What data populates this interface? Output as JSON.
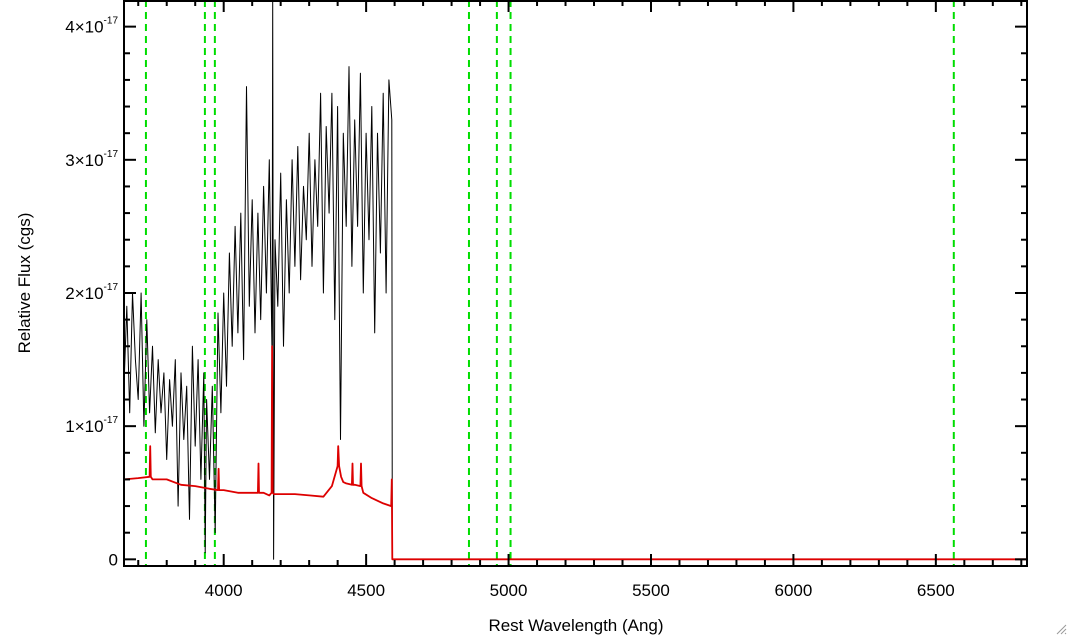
{
  "chart_data": {
    "type": "line",
    "title": "",
    "xlabel": "Rest Wavelength (Ang)",
    "ylabel": "Relative Flux (cgs)",
    "xlim": [
      3650,
      6820
    ],
    "ylim": [
      -0.05,
      4.2
    ],
    "y_unit_exponent": "-17",
    "x_ticks": [
      {
        "value": 4000,
        "label": "4000"
      },
      {
        "value": 4500,
        "label": "4500"
      },
      {
        "value": 5000,
        "label": "5000"
      },
      {
        "value": 5500,
        "label": "5500"
      },
      {
        "value": 6000,
        "label": "6000"
      },
      {
        "value": 6500,
        "label": "6500"
      }
    ],
    "y_ticks": [
      {
        "value": 0,
        "label": "0",
        "exp": ""
      },
      {
        "value": 1,
        "label": "1×10",
        "exp": "-17"
      },
      {
        "value": 2,
        "label": "2×10",
        "exp": "-17"
      },
      {
        "value": 3,
        "label": "3×10",
        "exp": "-17"
      },
      {
        "value": 4,
        "label": "4×10",
        "exp": "-17"
      }
    ],
    "reference_lines": {
      "color": "#00dd00",
      "style": "dashed",
      "x": [
        3727,
        3934,
        3969,
        4861,
        4959,
        5007,
        6563
      ]
    },
    "series": [
      {
        "color": "#000000",
        "description": "observed flux (noisy), data ends at ~4590",
        "x": [
          3650,
          3660,
          3670,
          3680,
          3690,
          3700,
          3710,
          3720,
          3730,
          3740,
          3750,
          3760,
          3770,
          3780,
          3790,
          3800,
          3810,
          3820,
          3830,
          3840,
          3850,
          3860,
          3870,
          3880,
          3890,
          3900,
          3910,
          3920,
          3930,
          3935,
          3940,
          3950,
          3960,
          3970,
          3980,
          3990,
          4000,
          4010,
          4020,
          4030,
          4040,
          4050,
          4060,
          4070,
          4080,
          4090,
          4100,
          4110,
          4120,
          4130,
          4140,
          4150,
          4160,
          4170,
          4172,
          4175,
          4180,
          4190,
          4200,
          4210,
          4220,
          4230,
          4240,
          4250,
          4260,
          4270,
          4280,
          4290,
          4300,
          4310,
          4320,
          4330,
          4340,
          4350,
          4360,
          4370,
          4380,
          4390,
          4400,
          4410,
          4420,
          4430,
          4440,
          4450,
          4460,
          4470,
          4480,
          4490,
          4500,
          4510,
          4520,
          4530,
          4540,
          4550,
          4560,
          4570,
          4580,
          4590,
          4592
        ],
        "values": [
          1.3,
          1.9,
          1.1,
          2.0,
          1.5,
          1.2,
          2.0,
          1.0,
          1.8,
          1.1,
          1.6,
          0.95,
          1.5,
          1.1,
          1.4,
          0.75,
          1.35,
          1.0,
          1.5,
          0.4,
          1.4,
          0.9,
          1.3,
          0.3,
          1.6,
          0.85,
          1.5,
          0.6,
          1.4,
          0.05,
          1.2,
          0.6,
          1.3,
          0.2,
          1.85,
          1.1,
          2.0,
          1.3,
          2.3,
          1.6,
          2.5,
          1.7,
          2.6,
          1.5,
          3.55,
          1.9,
          2.7,
          1.7,
          2.6,
          1.8,
          2.8,
          2.0,
          3.0,
          1.5,
          4.2,
          0.0,
          2.4,
          1.9,
          2.9,
          1.6,
          2.7,
          2.0,
          3.0,
          2.2,
          3.1,
          2.1,
          2.8,
          2.4,
          3.2,
          2.2,
          3.0,
          2.5,
          3.5,
          2.0,
          3.25,
          2.6,
          3.5,
          1.8,
          3.4,
          0.9,
          3.2,
          2.5,
          3.7,
          2.2,
          3.3,
          2.5,
          3.65,
          2.0,
          3.2,
          2.4,
          3.4,
          1.7,
          3.2,
          2.3,
          3.5,
          2.0,
          3.6,
          3.3,
          0.05
        ]
      },
      {
        "color": "#dd0000",
        "description": "model / continuum fit",
        "x": [
          3650,
          3700,
          3740,
          3742,
          3744,
          3750,
          3800,
          3850,
          3900,
          3950,
          3980,
          3982,
          3984,
          3990,
          4000,
          4050,
          4100,
          4120,
          4122,
          4124,
          4140,
          4160,
          4168,
          4170,
          4172,
          4176,
          4180,
          4200,
          4250,
          4300,
          4350,
          4380,
          4400,
          4402,
          4405,
          4412,
          4420,
          4430,
          4450,
          4452,
          4454,
          4460,
          4480,
          4482,
          4484,
          4490,
          4520,
          4560,
          4588,
          4590,
          4592,
          4600,
          4700,
          5000,
          5500,
          6000,
          6500,
          6820
        ],
        "values": [
          0.6,
          0.61,
          0.62,
          0.85,
          0.62,
          0.6,
          0.6,
          0.56,
          0.55,
          0.53,
          0.52,
          0.68,
          0.52,
          0.52,
          0.52,
          0.5,
          0.5,
          0.5,
          0.72,
          0.5,
          0.5,
          0.48,
          0.5,
          1.6,
          0.5,
          0.49,
          0.49,
          0.49,
          0.49,
          0.48,
          0.47,
          0.55,
          0.7,
          0.85,
          0.7,
          0.62,
          0.58,
          0.57,
          0.56,
          0.72,
          0.56,
          0.56,
          0.55,
          0.72,
          0.55,
          0.5,
          0.46,
          0.42,
          0.4,
          0.6,
          0.0,
          0.0,
          0.0,
          0.0,
          0.0,
          0.0,
          0.0,
          0.0
        ]
      }
    ],
    "grid": false,
    "legend": "none"
  }
}
